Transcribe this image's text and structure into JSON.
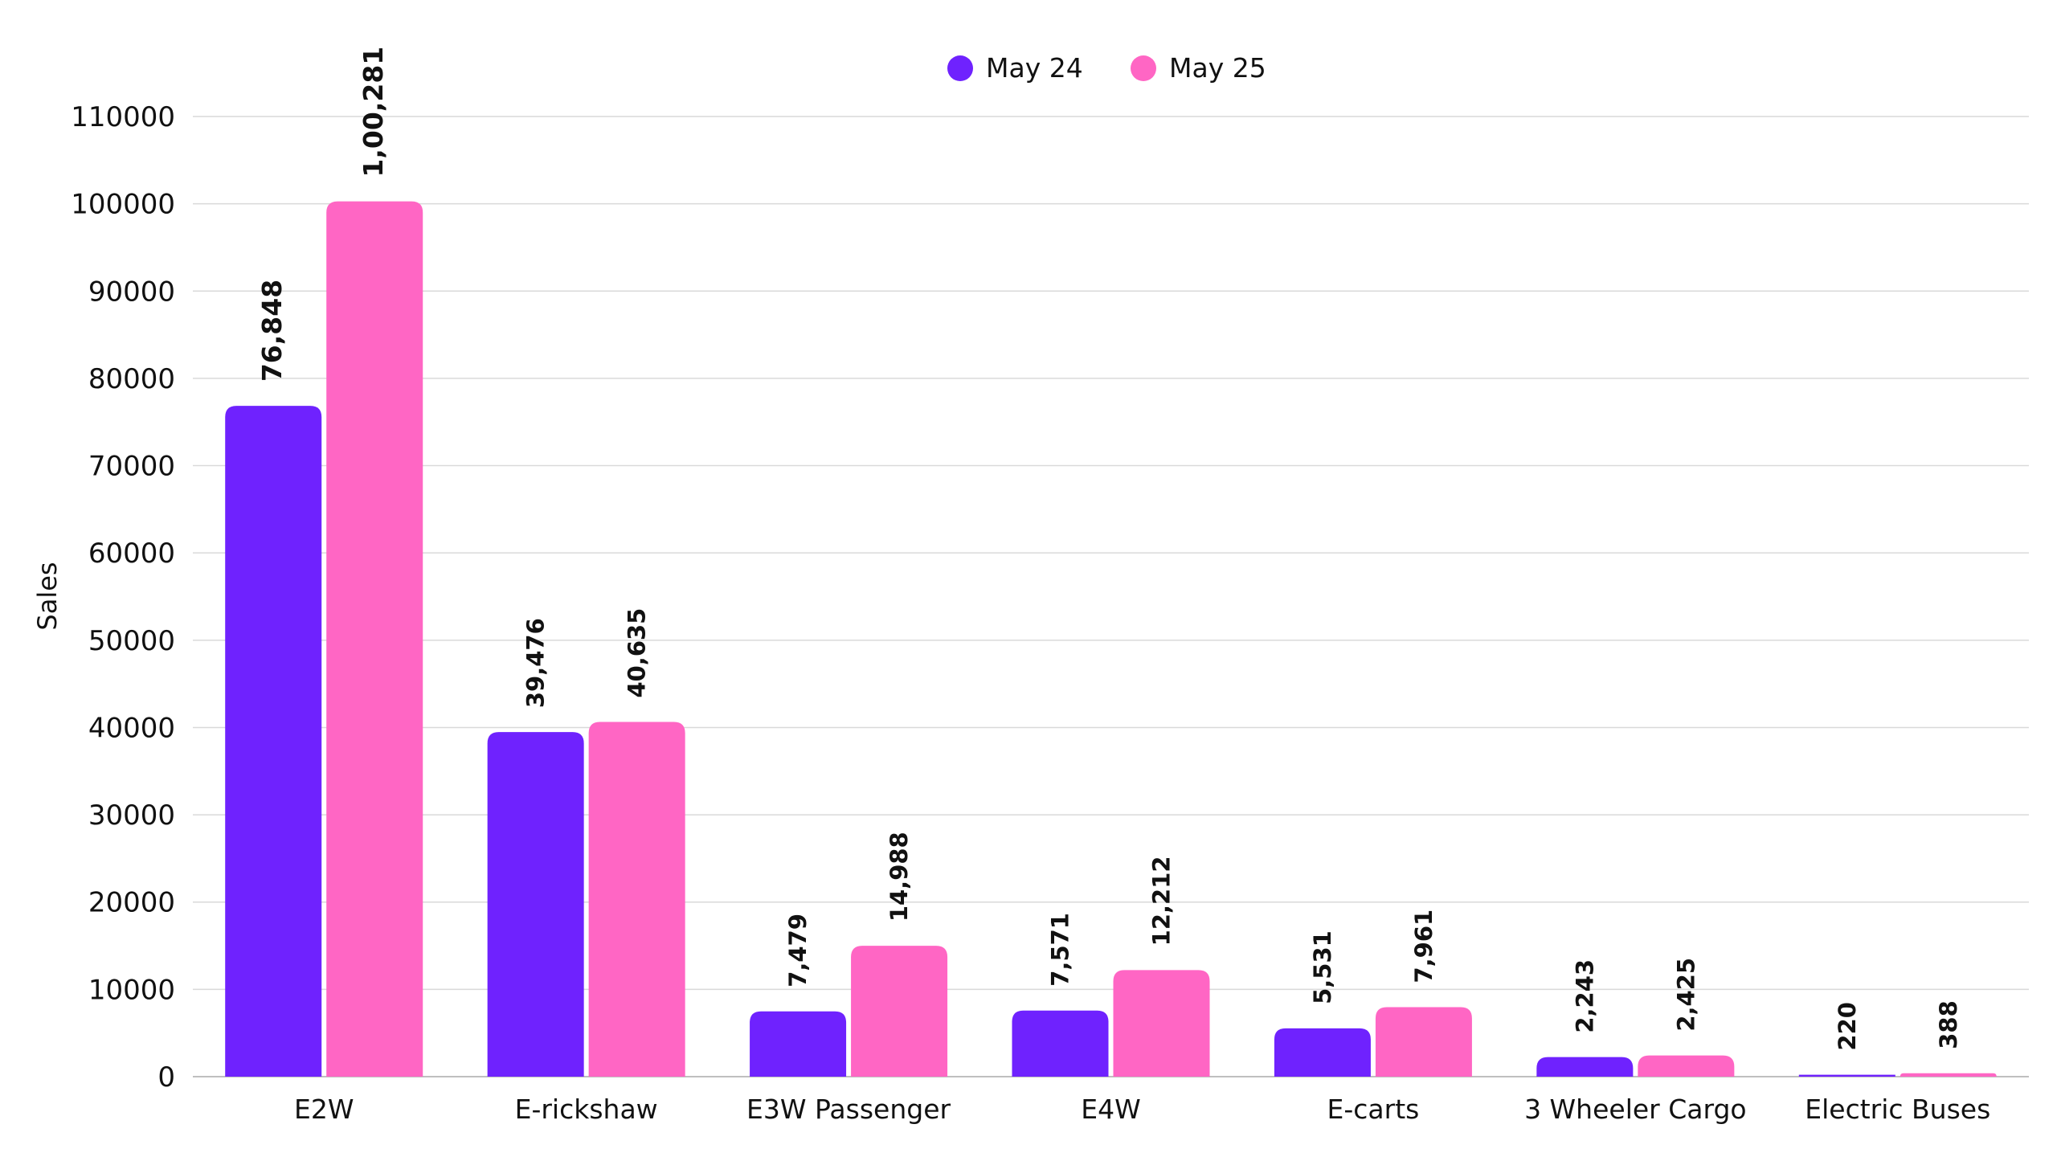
{
  "chart_data": {
    "type": "bar",
    "title": "",
    "xlabel": "",
    "ylabel": "Sales",
    "ylim": [
      0,
      110000
    ],
    "yticks": [
      0,
      10000,
      20000,
      30000,
      40000,
      50000,
      60000,
      70000,
      80000,
      90000,
      100000,
      110000
    ],
    "grid": true,
    "legend_position": "top-center",
    "categories": [
      "E2W",
      "E-rickshaw",
      "E3W Passenger",
      "E4W",
      "E-carts",
      "3 Wheeler Cargo",
      "Electric Buses"
    ],
    "series": [
      {
        "name": "May 24",
        "color": "#6f22fe",
        "values": [
          76848,
          39476,
          7479,
          7571,
          5531,
          2243,
          220
        ],
        "labels": [
          "76,848",
          "39,476",
          "7,479",
          "7,571",
          "5,531",
          "2,243",
          "220"
        ]
      },
      {
        "name": "May 25",
        "color": "#ff66c4",
        "values": [
          100281,
          40635,
          14988,
          12212,
          7961,
          2425,
          388
        ],
        "labels": [
          "1,00,281",
          "40,635",
          "14,988",
          "12,212",
          "7,961",
          "2,425",
          "388"
        ]
      }
    ]
  }
}
